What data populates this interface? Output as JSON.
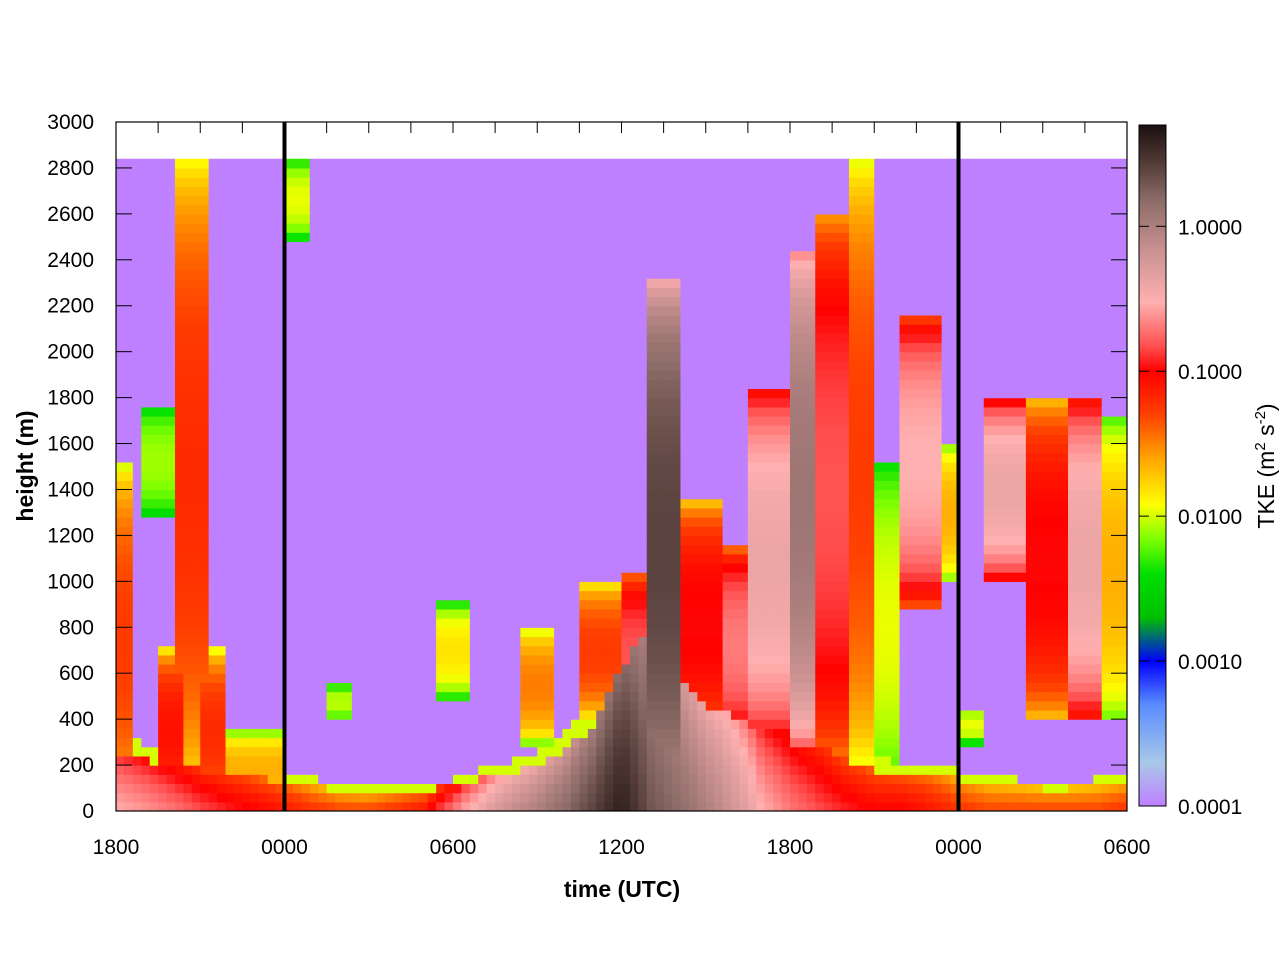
{
  "chart_data": {
    "type": "heatmap",
    "xlabel": "time (UTC)",
    "ylabel": "height (m)",
    "ylim": [
      0,
      3000
    ],
    "y_ticks": [
      "0",
      "200",
      "400",
      "600",
      "800",
      "1000",
      "1200",
      "1400",
      "1600",
      "1800",
      "2000",
      "2200",
      "2400",
      "2600",
      "2800",
      "3000"
    ],
    "x_tick_labels": [
      "1800",
      "0000",
      "0600",
      "1200",
      "1800",
      "0000",
      "0600"
    ],
    "x_range_hours": [
      0,
      36
    ],
    "x_major_tick_hours": [
      0,
      6,
      12,
      18,
      24,
      30,
      36
    ],
    "day_boundaries_hours": [
      6,
      30
    ],
    "data_top_height": 2840,
    "background_tke": 0.0001,
    "colorbar": {
      "label_main": "TKE (m",
      "label_sup1": "2",
      "label_mid": " s",
      "label_sup2": "-2",
      "label_end": ")",
      "scale": "log",
      "range": [
        0.0001,
        5.0
      ],
      "tick_values": [
        0.0001,
        0.001,
        0.01,
        0.1,
        1.0
      ],
      "tick_labels": [
        "0.0001",
        "0.0010",
        "0.0100",
        "0.1000",
        "1.0000"
      ],
      "colors": [
        "#bf80ff",
        "#a8c8e8",
        "#5a8cff",
        "#0000ff",
        "#00c000",
        "#00e000",
        "#80ff00",
        "#ffff00",
        "#ffa500",
        "#ff4000",
        "#ff0000",
        "#ff5050",
        "#ffb0b0",
        "#c89090",
        "#8c6c68",
        "#4a3430",
        "#1a1010"
      ],
      "color_tke": [
        0.0001,
        0.0002,
        0.0005,
        0.001,
        0.002,
        0.004,
        0.007,
        0.012,
        0.025,
        0.05,
        0.1,
        0.15,
        0.3,
        0.7,
        1.5,
        3.0,
        5.0
      ]
    },
    "surface_layer": {
      "hours": [
        0,
        1,
        2,
        3,
        4,
        5,
        6,
        7,
        8,
        9,
        10,
        11,
        12,
        13,
        14,
        15,
        16,
        17,
        18,
        19,
        20,
        21,
        22,
        23,
        24,
        25,
        26,
        27,
        28,
        29,
        30,
        31,
        32,
        33,
        34,
        35,
        36
      ],
      "depth_m": [
        250,
        230,
        200,
        180,
        170,
        150,
        130,
        110,
        90,
        80,
        90,
        90,
        110,
        140,
        170,
        200,
        260,
        380,
        620,
        820,
        600,
        440,
        420,
        350,
        320,
        300,
        220,
        180,
        160,
        160,
        140,
        120,
        110,
        100,
        100,
        110,
        120
      ],
      "tke": [
        0.3,
        0.25,
        0.2,
        0.15,
        0.12,
        0.1,
        0.08,
        0.06,
        0.05,
        0.05,
        0.06,
        0.08,
        0.2,
        0.4,
        0.7,
        1.0,
        1.5,
        2.5,
        4.0,
        2.0,
        1.5,
        1.0,
        0.6,
        0.3,
        0.2,
        0.15,
        0.12,
        0.1,
        0.1,
        0.08,
        0.06,
        0.05,
        0.05,
        0.05,
        0.05,
        0.05,
        0.06
      ]
    },
    "plumes": [
      {
        "hour_start": 1.5,
        "hour_end": 2.5,
        "z_bot": 0,
        "z_top": 700,
        "tke": 0.08
      },
      {
        "hour_start": 2.2,
        "hour_end": 3.2,
        "z_bot": 100,
        "z_top": 2830,
        "tke": 0.06
      },
      {
        "hour_start": 1.0,
        "hour_end": 2.0,
        "z_bot": 1300,
        "z_top": 1750,
        "tke": 0.005
      },
      {
        "hour_start": 3.0,
        "hour_end": 4.0,
        "z_bot": 0,
        "z_top": 700,
        "tke": 0.06
      },
      {
        "hour_start": 4.0,
        "hour_end": 6.0,
        "z_bot": 0,
        "z_top": 350,
        "tke": 0.02
      },
      {
        "hour_start": 0,
        "hour_end": 0.5,
        "z_bot": 0,
        "z_top": 1500,
        "tke": 0.05
      },
      {
        "hour_start": 6.0,
        "hour_end": 7.0,
        "z_bot": 2500,
        "z_top": 2830,
        "tke": 0.008
      },
      {
        "hour_start": 7.5,
        "hour_end": 8.5,
        "z_bot": 400,
        "z_top": 550,
        "tke": 0.006
      },
      {
        "hour_start": 11.5,
        "hour_end": 12.5,
        "z_bot": 500,
        "z_top": 900,
        "tke": 0.012
      },
      {
        "hour_start": 14.5,
        "hour_end": 15.5,
        "z_bot": 300,
        "z_top": 800,
        "tke": 0.03
      },
      {
        "hour_start": 16.5,
        "hour_end": 18.0,
        "z_bot": 400,
        "z_top": 1000,
        "tke": 0.05
      },
      {
        "hour_start": 18.0,
        "hour_end": 19.0,
        "z_bot": 300,
        "z_top": 1050,
        "tke": 0.15
      },
      {
        "hour_start": 19.0,
        "hour_end": 20.0,
        "z_bot": 0,
        "z_top": 2300,
        "tke": 2.5
      },
      {
        "hour_start": 20.0,
        "hour_end": 21.5,
        "z_bot": 300,
        "z_top": 1350,
        "tke": 0.1
      },
      {
        "hour_start": 21.5,
        "hour_end": 22.5,
        "z_bot": 300,
        "z_top": 1150,
        "tke": 0.2
      },
      {
        "hour_start": 22.5,
        "hour_end": 24.0,
        "z_bot": 300,
        "z_top": 1850,
        "tke": 0.4
      },
      {
        "hour_start": 24.0,
        "hour_end": 25.0,
        "z_bot": 300,
        "z_top": 2450,
        "tke": 1.2
      },
      {
        "hour_start": 25.0,
        "hour_end": 26.0,
        "z_bot": 200,
        "z_top": 2600,
        "tke": 0.15
      },
      {
        "hour_start": 26.0,
        "hour_end": 27.0,
        "z_bot": 200,
        "z_top": 2830,
        "tke": 0.05
      },
      {
        "hour_start": 27.0,
        "hour_end": 28.0,
        "z_bot": 100,
        "z_top": 1500,
        "tke": 0.008
      },
      {
        "hour_start": 28.0,
        "hour_end": 29.5,
        "z_bot": 900,
        "z_top": 2150,
        "tke": 0.3
      },
      {
        "hour_start": 29.5,
        "hour_end": 30.0,
        "z_bot": 1000,
        "z_top": 1600,
        "tke": 0.02
      },
      {
        "hour_start": 30.0,
        "hour_end": 31.0,
        "z_bot": 300,
        "z_top": 450,
        "tke": 0.008
      },
      {
        "hour_start": 31.0,
        "hour_end": 32.5,
        "z_bot": 1000,
        "z_top": 1800,
        "tke": 0.4
      },
      {
        "hour_start": 32.5,
        "hour_end": 34.0,
        "z_bot": 400,
        "z_top": 1800,
        "tke": 0.1
      },
      {
        "hour_start": 34.0,
        "hour_end": 35.0,
        "z_bot": 400,
        "z_top": 1800,
        "tke": 0.4
      },
      {
        "hour_start": 35.0,
        "hour_end": 36.0,
        "z_bot": 400,
        "z_top": 1700,
        "tke": 0.02
      }
    ]
  }
}
